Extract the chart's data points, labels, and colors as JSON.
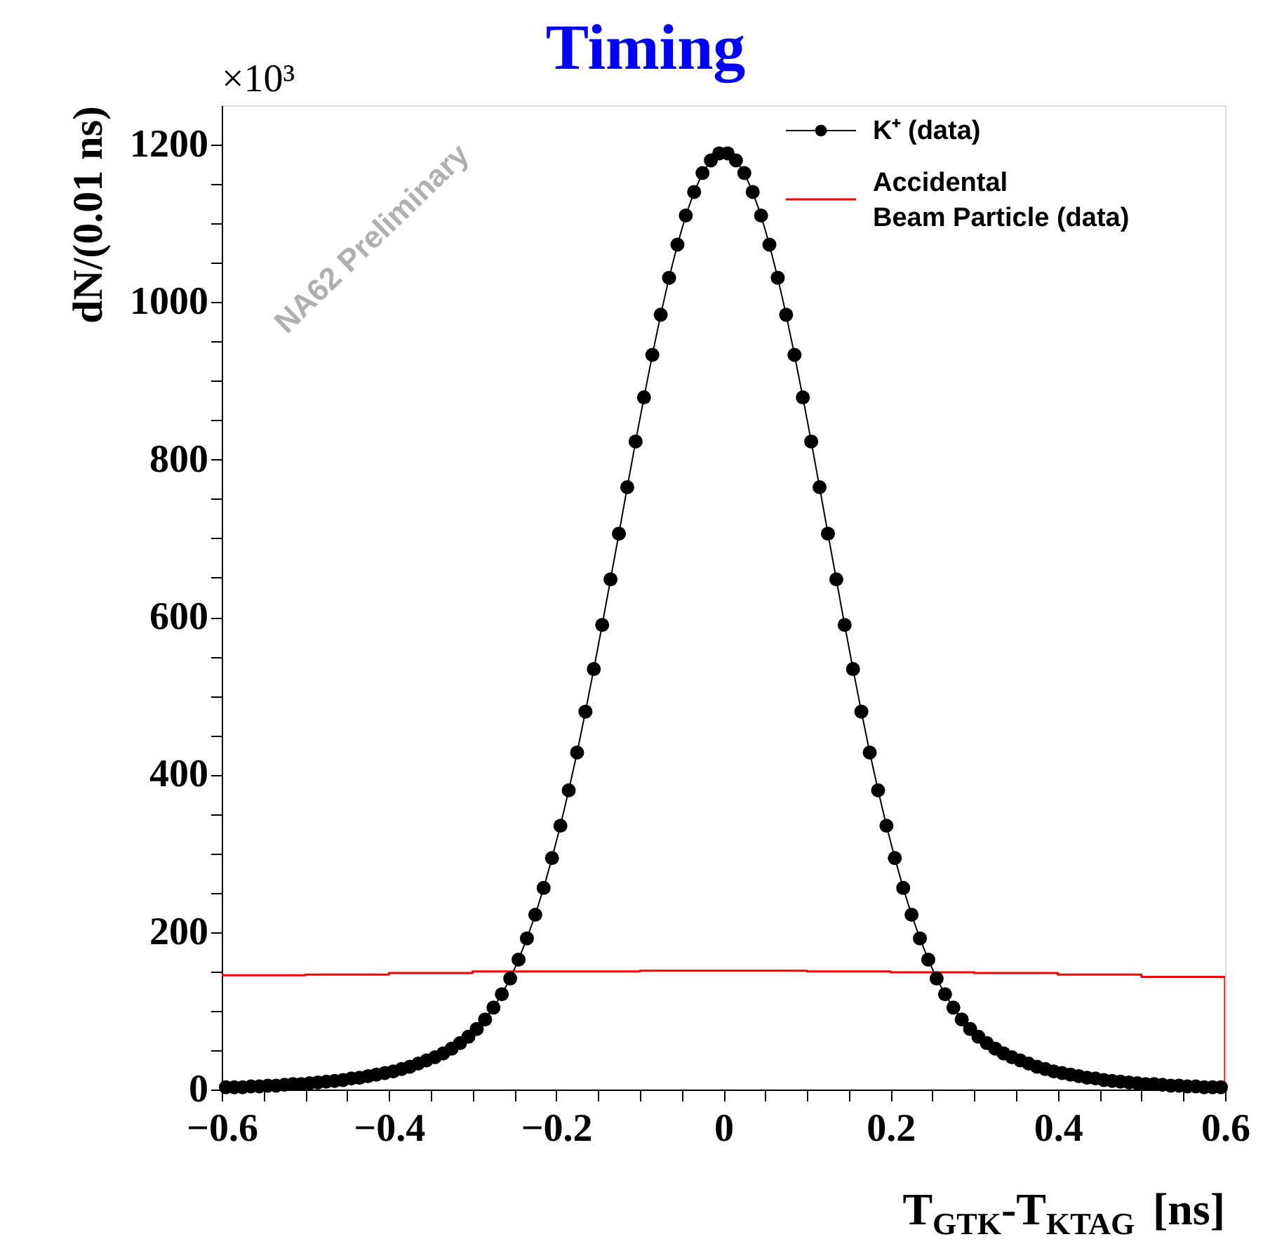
{
  "chart_data": {
    "type": "line",
    "title": "Timing",
    "xlabel": "T$_{GTK}$-T$_{KTAG}$ [ns]",
    "ylabel": "dN/(0.01 ns)",
    "annotations": [
      "×10³",
      "NA62 Preliminary"
    ],
    "xlim": [
      -0.6,
      0.6
    ],
    "ylim": [
      0,
      1250
    ],
    "xticks": [
      {
        "value": -0.6,
        "label": "−0.6"
      },
      {
        "value": -0.55,
        "label": null
      },
      {
        "value": -0.5,
        "label": null
      },
      {
        "value": -0.45,
        "label": null
      },
      {
        "value": -0.4,
        "label": "−0.4"
      },
      {
        "value": -0.35,
        "label": null
      },
      {
        "value": -0.3,
        "label": null
      },
      {
        "value": -0.25,
        "label": null
      },
      {
        "value": -0.2,
        "label": "−0.2"
      },
      {
        "value": -0.15,
        "label": null
      },
      {
        "value": -0.1,
        "label": null
      },
      {
        "value": -0.05,
        "label": null
      },
      0,
      {
        "value": 0.05,
        "label": null
      },
      {
        "value": 0.1,
        "label": null
      },
      {
        "value": 0.15,
        "label": null
      },
      0.2,
      {
        "value": 0.25,
        "label": null
      },
      {
        "value": 0.3,
        "label": null
      },
      {
        "value": 0.35,
        "label": null
      },
      0.4,
      {
        "value": 0.45,
        "label": null
      },
      {
        "value": 0.5,
        "label": null
      },
      {
        "value": 0.55,
        "label": null
      },
      0.6
    ],
    "yticks": [
      0,
      {
        "value": 50,
        "label": null
      },
      {
        "value": 100,
        "label": null
      },
      {
        "value": 150,
        "label": null
      },
      200,
      {
        "value": 250,
        "label": null
      },
      {
        "value": 300,
        "label": null
      },
      {
        "value": 350,
        "label": null
      },
      400,
      {
        "value": 450,
        "label": null
      },
      {
        "value": 500,
        "label": null
      },
      {
        "value": 550,
        "label": null
      },
      600,
      {
        "value": 650,
        "label": null
      },
      {
        "value": 700,
        "label": null
      },
      {
        "value": 750,
        "label": null
      },
      800,
      {
        "value": 850,
        "label": null
      },
      {
        "value": 900,
        "label": null
      },
      {
        "value": 950,
        "label": null
      },
      1000,
      {
        "value": 1050,
        "label": null
      },
      {
        "value": 1100,
        "label": null
      },
      {
        "value": 1150,
        "label": null
      },
      1200
    ],
    "grid": false,
    "legend": "top right",
    "series": [
      {
        "name": "K⁺ (data)",
        "color": "#000000",
        "type": "line",
        "marker": "circle",
        "x": [
          -0.595,
          -0.585,
          -0.575,
          -0.565,
          -0.555,
          -0.545,
          -0.535,
          -0.525,
          -0.515,
          -0.505,
          -0.495,
          -0.485,
          -0.475,
          -0.465,
          -0.455,
          -0.445,
          -0.435,
          -0.425,
          -0.415,
          -0.405,
          -0.395,
          -0.385,
          -0.375,
          -0.365,
          -0.355,
          -0.345,
          -0.335,
          -0.325,
          -0.315,
          -0.305,
          -0.295,
          -0.285,
          -0.275,
          -0.265,
          -0.255,
          -0.245,
          -0.235,
          -0.225,
          -0.215,
          -0.205,
          -0.195,
          -0.185,
          -0.175,
          -0.165,
          -0.155,
          -0.145,
          -0.135,
          -0.125,
          -0.115,
          -0.105,
          -0.095,
          -0.085,
          -0.075,
          -0.065,
          -0.055,
          -0.045,
          -0.035,
          -0.025,
          -0.015,
          -0.005,
          0.005,
          0.015,
          0.025,
          0.035,
          0.045,
          0.055,
          0.065,
          0.075,
          0.085,
          0.095,
          0.105,
          0.115,
          0.125,
          0.135,
          0.145,
          0.155,
          0.165,
          0.175,
          0.185,
          0.195,
          0.205,
          0.215,
          0.225,
          0.235,
          0.245,
          0.255,
          0.265,
          0.275,
          0.285,
          0.295,
          0.305,
          0.315,
          0.325,
          0.335,
          0.345,
          0.355,
          0.365,
          0.375,
          0.385,
          0.395,
          0.405,
          0.415,
          0.425,
          0.435,
          0.445,
          0.455,
          0.465,
          0.475,
          0.485,
          0.495,
          0.505,
          0.515,
          0.525,
          0.535,
          0.545,
          0.555,
          0.565,
          0.575,
          0.585,
          0.595
        ],
        "values": [
          3,
          3,
          3,
          4,
          4,
          5,
          5,
          6,
          7,
          7,
          8,
          9,
          10,
          11,
          12,
          14,
          15,
          17,
          19,
          21,
          23,
          26,
          29,
          33,
          37,
          41,
          46,
          52,
          59,
          67,
          77,
          89,
          104,
          121,
          141,
          165,
          192,
          222,
          256,
          294,
          335,
          380,
          428,
          480,
          534,
          590,
          648,
          706,
          765,
          823,
          879,
          933,
          984,
          1031,
          1073,
          1110,
          1140,
          1164,
          1180,
          1189,
          1189,
          1180,
          1164,
          1140,
          1110,
          1073,
          1031,
          984,
          933,
          879,
          823,
          765,
          706,
          648,
          590,
          534,
          480,
          428,
          380,
          335,
          294,
          256,
          222,
          192,
          165,
          141,
          121,
          104,
          89,
          77,
          67,
          59,
          52,
          46,
          41,
          37,
          33,
          29,
          26,
          23,
          21,
          19,
          17,
          15,
          14,
          12,
          11,
          10,
          9,
          8,
          7,
          7,
          6,
          5,
          5,
          4,
          4,
          3,
          3,
          3
        ]
      },
      {
        "name": "Accidental\nBeam Particle (data)",
        "color": "#ff0000",
        "type": "step",
        "x": [
          -0.6,
          -0.5,
          -0.4,
          -0.3,
          -0.2,
          -0.1,
          0,
          0.1,
          0.2,
          0.3,
          0.4,
          0.5,
          0.6,
          0.6
        ],
        "values": [
          145,
          146,
          148,
          150,
          150,
          151,
          151,
          150,
          149,
          148,
          146,
          143,
          143,
          0
        ]
      }
    ]
  }
}
